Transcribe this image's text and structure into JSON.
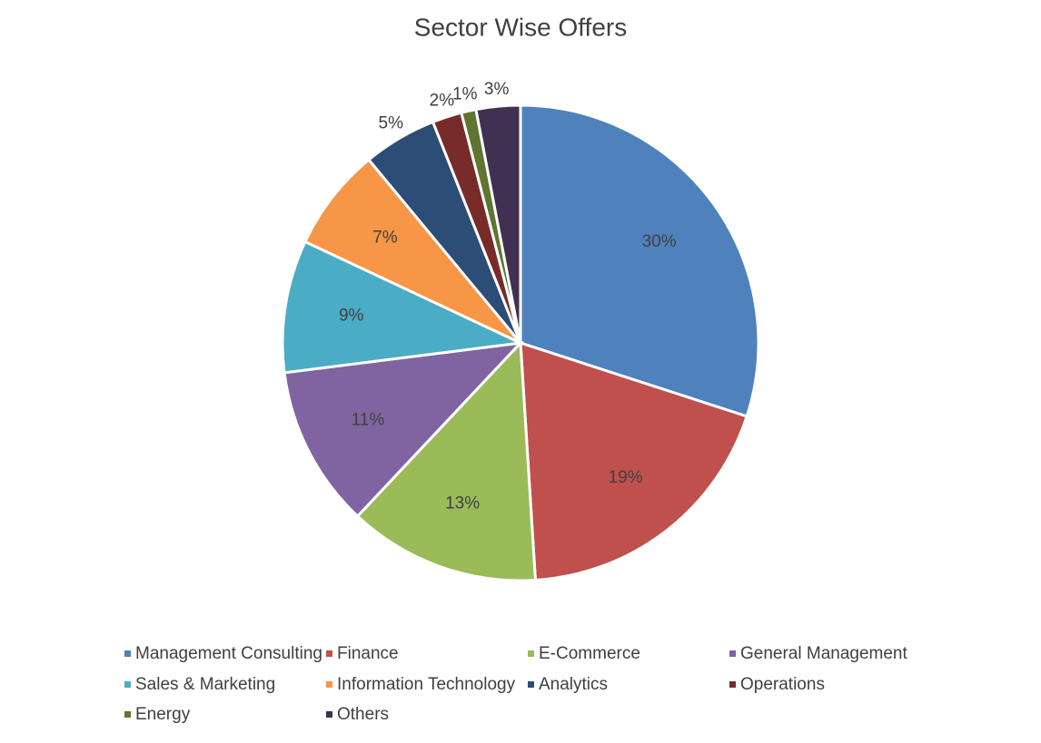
{
  "chart_data": {
    "type": "pie",
    "title": "Sector Wise Offers",
    "categories": [
      "Management Consulting",
      "Finance",
      "E-Commerce",
      "General Management",
      "Sales & Marketing",
      "Information Technology",
      "Analytics",
      "Operations",
      "Energy",
      "Others"
    ],
    "values": [
      30,
      19,
      13,
      11,
      9,
      7,
      5,
      2,
      1,
      3
    ],
    "value_labels": [
      "30%",
      "19%",
      "13%",
      "11%",
      "9%",
      "7%",
      "5%",
      "2%",
      "1%",
      "3%"
    ],
    "colors": [
      "#4f81bd",
      "#c0504d",
      "#9bbb59",
      "#8064a2",
      "#4bacc6",
      "#f79646",
      "#2c4d75",
      "#772c2a",
      "#5f7530",
      "#403152"
    ],
    "legend": "bottom"
  }
}
